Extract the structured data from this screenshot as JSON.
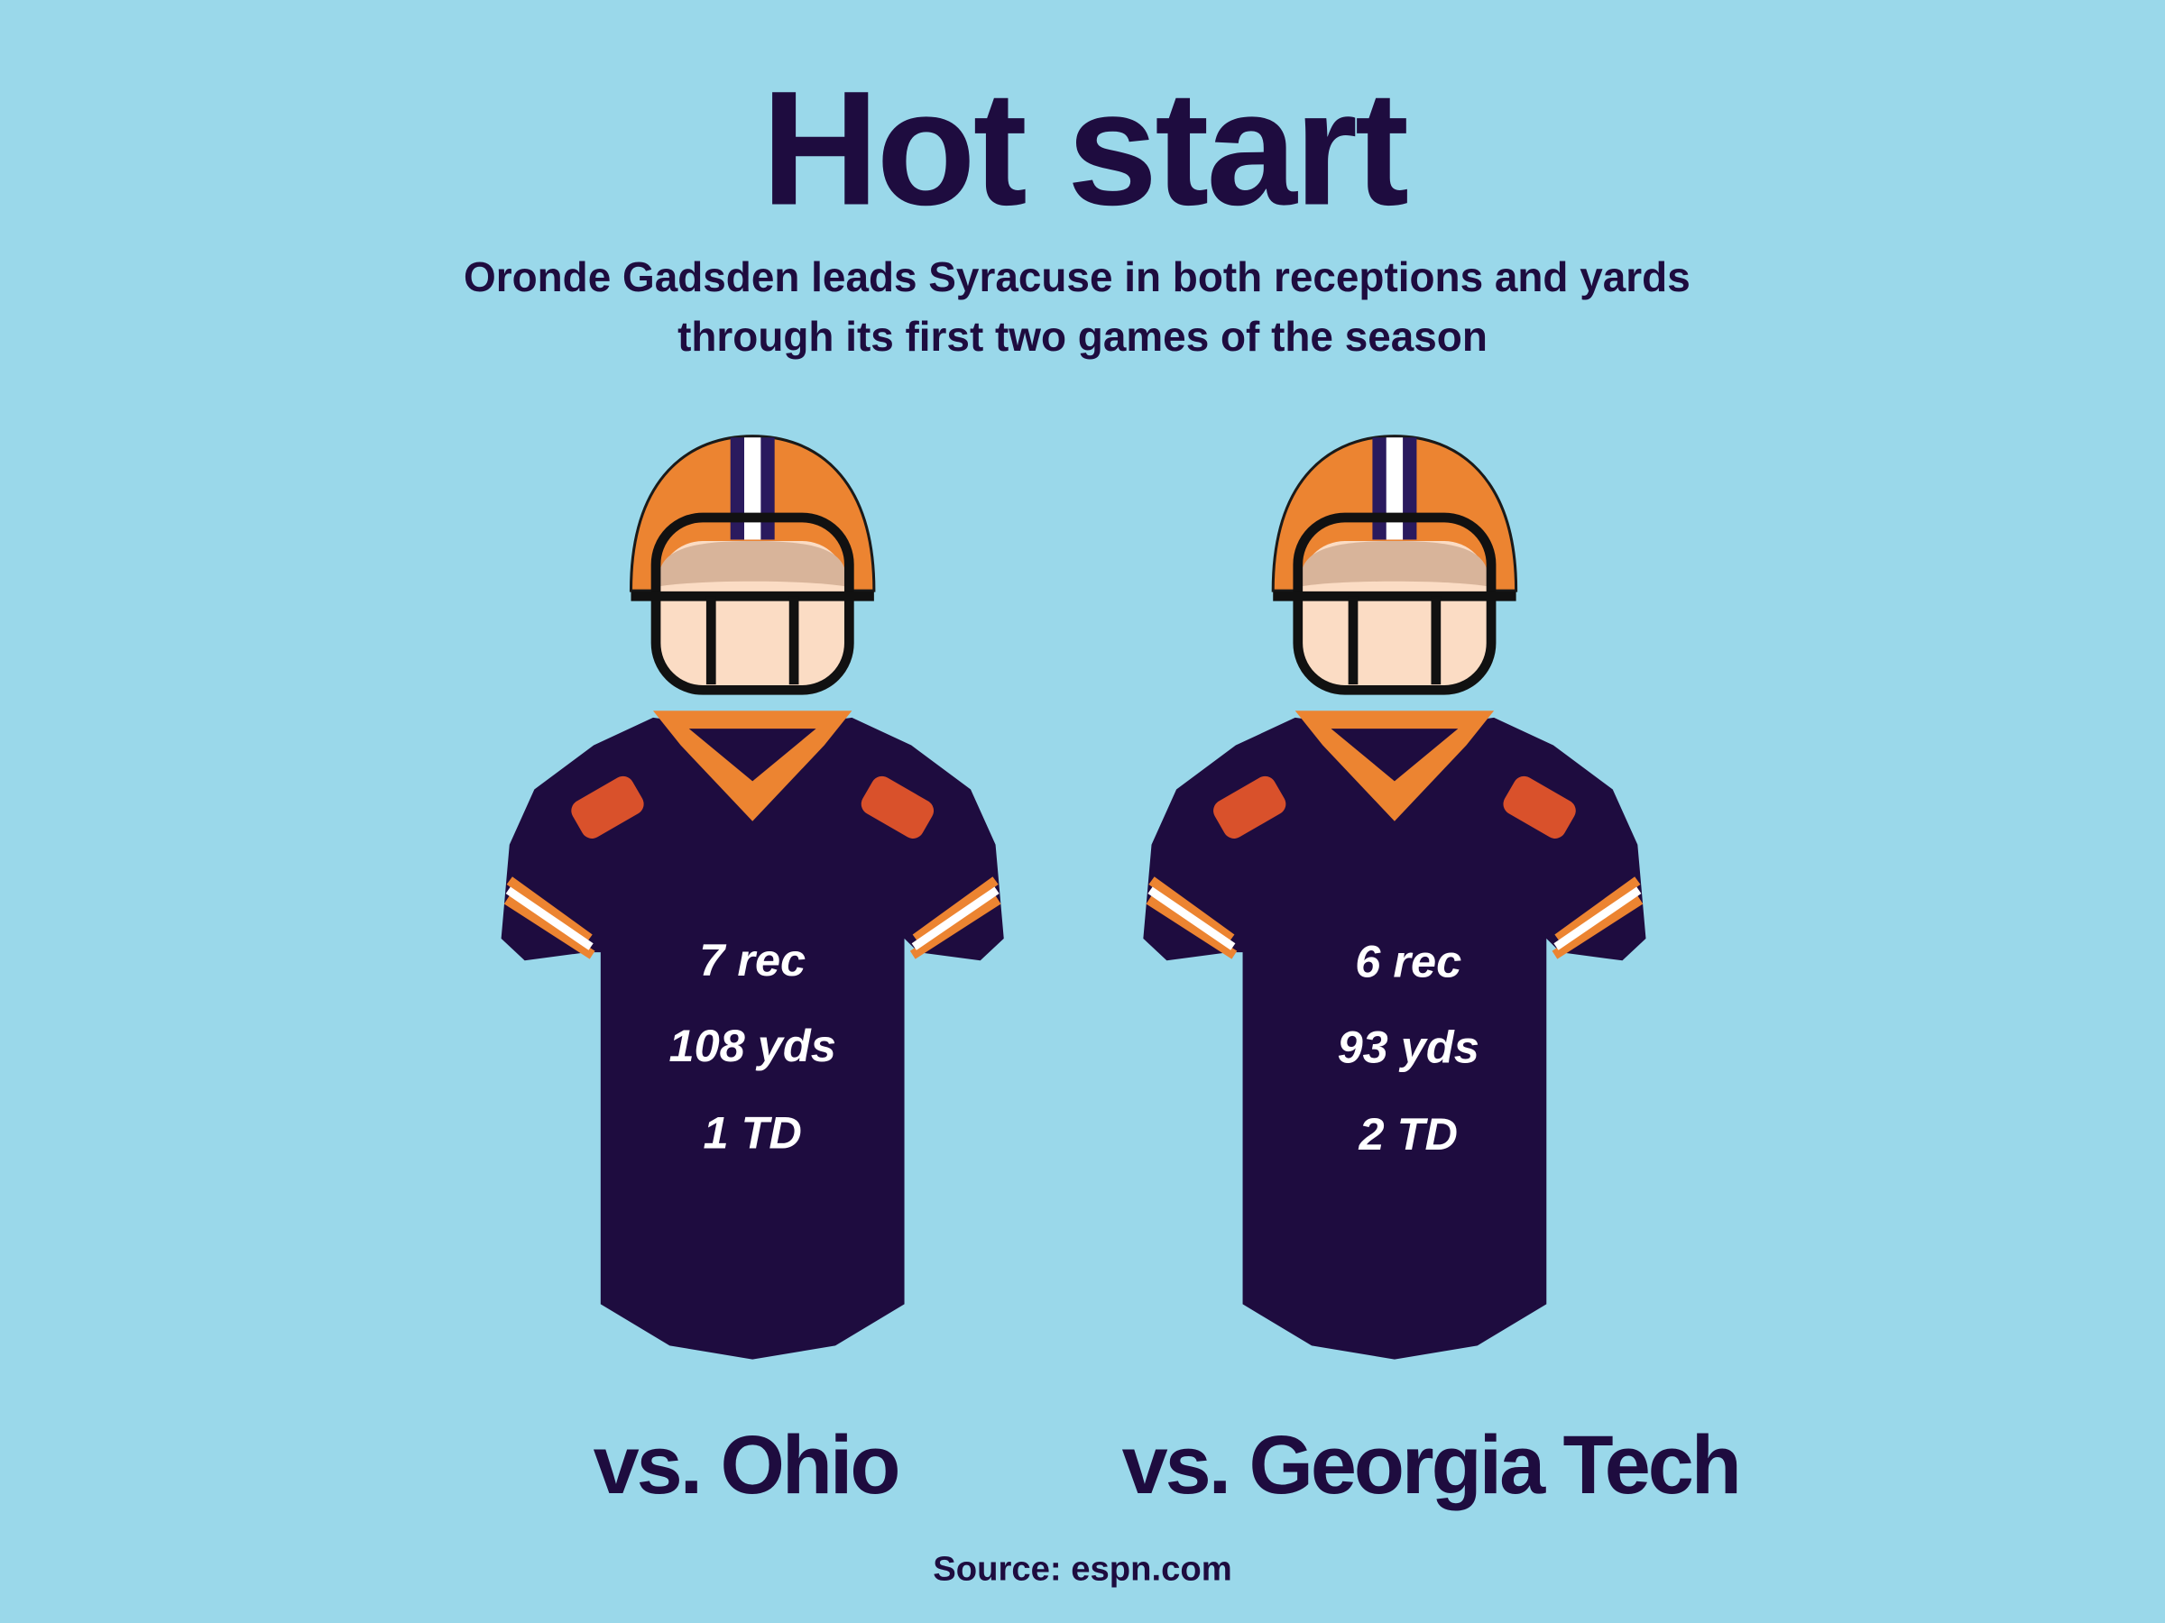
{
  "header": {
    "title": "Hot start",
    "subtitle": [
      "Oronde Gadsden leads Syracuse in both receptions and yards",
      "through its first two games of the season"
    ]
  },
  "games": [
    {
      "stats": [
        "7 rec",
        "108 yds",
        "1 TD"
      ],
      "opponent": "vs. Ohio"
    },
    {
      "stats": [
        "6 rec",
        "93 yds",
        "2 TD"
      ],
      "opponent": "vs. Georgia Tech"
    }
  ],
  "footer": {
    "source": "Source: espn.com"
  }
}
